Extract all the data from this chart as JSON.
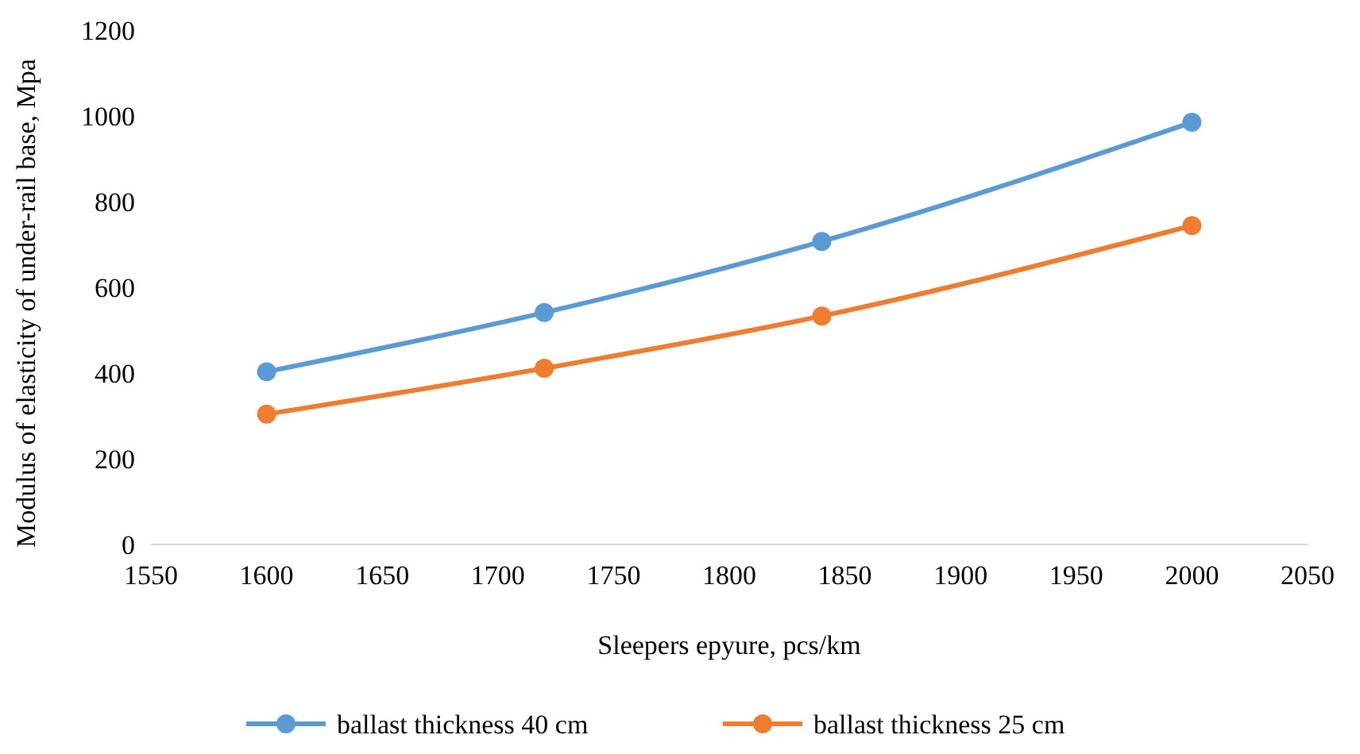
{
  "chart_data": {
    "type": "line",
    "xlabel": "Sleepers epyure, pcs/km",
    "ylabel": "Modulus of elasticity of under-rail base, Mpa",
    "xlim": [
      1550,
      2050
    ],
    "xticks": [
      1550,
      1600,
      1650,
      1700,
      1750,
      1800,
      1850,
      1900,
      1950,
      2000,
      2050
    ],
    "ylim": [
      0,
      1200
    ],
    "yticks": [
      0,
      200,
      400,
      600,
      800,
      1000,
      1200
    ],
    "grid": false,
    "legend": "bottom",
    "marker": "circle",
    "series": [
      {
        "name": "ballast thickness 40 cm",
        "color": "#5b9bd5",
        "x": [
          1600,
          1720,
          1840,
          2000
        ],
        "values": [
          403,
          541,
          707,
          985
        ]
      },
      {
        "name": "ballast thickness 25 cm",
        "color": "#ed7d31",
        "x": [
          1600,
          1720,
          1840,
          2000
        ],
        "values": [
          304,
          411,
          533,
          744
        ]
      }
    ]
  }
}
